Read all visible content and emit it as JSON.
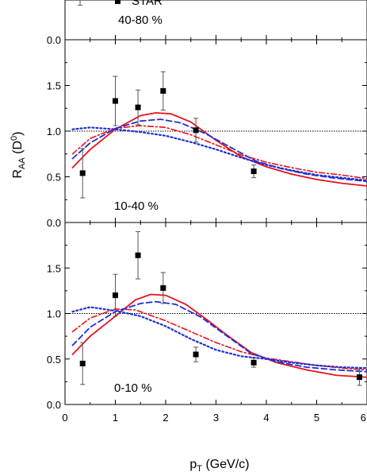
{
  "chart_data": {
    "type": "scatter",
    "xlabel": "p",
    "xlabel_sub": "T",
    "xlabel_unit": " (GeV/c)",
    "ylabel": "R",
    "ylabel_sub": "AA",
    "ylabel_species": " (D",
    "ylabel_sup": "0",
    "ylabel_close": ")",
    "xlim": [
      0,
      6
    ],
    "ylim": [
      0,
      2.0
    ],
    "x_ticks": [
      "0",
      "1",
      "2",
      "3",
      "4",
      "5",
      "6"
    ],
    "y_ticks": [
      "0.0",
      "0.5",
      "1.0",
      "1.5"
    ],
    "reference_line": 1.0,
    "legend_entry": "STAR",
    "panels": [
      {
        "label": "40-80 %",
        "partial": true,
        "ylim": [
          0,
          0.3
        ],
        "points": [],
        "curves": [],
        "errbar_stub": {
          "x": 0.3,
          "y_top": 0.3,
          "y_bot": 0.26
        }
      },
      {
        "label": "10-40 %",
        "points": [
          {
            "x": 0.35,
            "y": 0.54,
            "err": 0.27
          },
          {
            "x": 1.0,
            "y": 1.33,
            "err": 0.27
          },
          {
            "x": 1.45,
            "y": 1.26,
            "err": 0.19
          },
          {
            "x": 1.95,
            "y": 1.44,
            "err": 0.21
          },
          {
            "x": 2.6,
            "y": 1.01,
            "err": 0.13
          },
          {
            "x": 3.75,
            "y": 0.56,
            "err": 0.07
          }
        ],
        "curves": [
          {
            "style": "solid-red",
            "points": [
              [
                0.15,
                0.6
              ],
              [
                0.5,
                0.8
              ],
              [
                1.0,
                1.02
              ],
              [
                1.5,
                1.17
              ],
              [
                1.8,
                1.2
              ],
              [
                2.1,
                1.19
              ],
              [
                2.5,
                1.1
              ],
              [
                3.0,
                0.9
              ],
              [
                3.5,
                0.72
              ],
              [
                4.0,
                0.61
              ],
              [
                4.5,
                0.53
              ],
              [
                5.0,
                0.47
              ],
              [
                5.5,
                0.43
              ],
              [
                6.0,
                0.4
              ]
            ]
          },
          {
            "style": "dashdot-red",
            "points": [
              [
                0.15,
                0.75
              ],
              [
                0.5,
                0.92
              ],
              [
                1.0,
                1.03
              ],
              [
                1.5,
                1.06
              ],
              [
                2.0,
                1.04
              ],
              [
                2.5,
                0.96
              ],
              [
                3.0,
                0.85
              ],
              [
                3.5,
                0.74
              ],
              [
                4.0,
                0.66
              ],
              [
                4.5,
                0.6
              ],
              [
                5.0,
                0.55
              ],
              [
                5.5,
                0.52
              ],
              [
                6.0,
                0.48
              ]
            ]
          },
          {
            "style": "dashed-blue",
            "points": [
              [
                0.15,
                0.7
              ],
              [
                0.5,
                0.87
              ],
              [
                1.0,
                1.03
              ],
              [
                1.5,
                1.11
              ],
              [
                1.9,
                1.13
              ],
              [
                2.3,
                1.09
              ],
              [
                2.8,
                0.97
              ],
              [
                3.3,
                0.82
              ],
              [
                3.8,
                0.67
              ],
              [
                4.3,
                0.59
              ],
              [
                4.8,
                0.53
              ],
              [
                5.3,
                0.49
              ],
              [
                6.0,
                0.45
              ]
            ]
          },
          {
            "style": "dotted-blue",
            "points": [
              [
                0.15,
                1.02
              ],
              [
                0.5,
                1.04
              ],
              [
                1.0,
                1.02
              ],
              [
                1.5,
                0.99
              ],
              [
                2.0,
                0.95
              ],
              [
                2.5,
                0.88
              ],
              [
                3.0,
                0.8
              ],
              [
                3.5,
                0.71
              ],
              [
                4.0,
                0.63
              ],
              [
                4.5,
                0.57
              ],
              [
                5.0,
                0.52
              ],
              [
                5.5,
                0.49
              ],
              [
                6.0,
                0.46
              ]
            ]
          }
        ]
      },
      {
        "label": "0-10 %",
        "points": [
          {
            "x": 0.35,
            "y": 0.45,
            "err": 0.23
          },
          {
            "x": 1.0,
            "y": 1.2,
            "err": 0.23
          },
          {
            "x": 1.45,
            "y": 1.64,
            "err": 0.26
          },
          {
            "x": 1.95,
            "y": 1.28,
            "err": 0.17
          },
          {
            "x": 2.6,
            "y": 0.55,
            "err": 0.08
          },
          {
            "x": 3.75,
            "y": 0.46,
            "err": 0.05
          },
          {
            "x": 5.85,
            "y": 0.3,
            "err": 0.09
          }
        ],
        "curves": [
          {
            "style": "solid-red",
            "points": [
              [
                0.15,
                0.55
              ],
              [
                0.5,
                0.75
              ],
              [
                1.0,
                0.97
              ],
              [
                1.4,
                1.15
              ],
              [
                1.7,
                1.21
              ],
              [
                2.0,
                1.2
              ],
              [
                2.4,
                1.1
              ],
              [
                2.8,
                0.94
              ],
              [
                3.2,
                0.77
              ],
              [
                3.7,
                0.57
              ],
              [
                4.2,
                0.46
              ],
              [
                4.8,
                0.38
              ],
              [
                5.4,
                0.32
              ],
              [
                6.0,
                0.3
              ]
            ]
          },
          {
            "style": "dashdot-red",
            "points": [
              [
                0.15,
                0.8
              ],
              [
                0.5,
                0.95
              ],
              [
                1.0,
                1.05
              ],
              [
                1.4,
                1.04
              ],
              [
                2.0,
                0.92
              ],
              [
                2.5,
                0.8
              ],
              [
                3.0,
                0.68
              ],
              [
                3.5,
                0.58
              ],
              [
                4.0,
                0.51
              ],
              [
                4.5,
                0.47
              ],
              [
                5.0,
                0.43
              ],
              [
                5.5,
                0.4
              ],
              [
                6.0,
                0.38
              ]
            ]
          },
          {
            "style": "dashed-blue",
            "points": [
              [
                0.15,
                0.65
              ],
              [
                0.5,
                0.85
              ],
              [
                1.0,
                1.02
              ],
              [
                1.5,
                1.11
              ],
              [
                1.8,
                1.13
              ],
              [
                2.2,
                1.1
              ],
              [
                2.7,
                0.96
              ],
              [
                3.2,
                0.76
              ],
              [
                3.7,
                0.56
              ],
              [
                4.2,
                0.47
              ],
              [
                4.8,
                0.41
              ],
              [
                5.4,
                0.38
              ],
              [
                6.0,
                0.36
              ]
            ]
          },
          {
            "style": "dotted-blue",
            "points": [
              [
                0.15,
                1.02
              ],
              [
                0.5,
                1.07
              ],
              [
                1.0,
                1.03
              ],
              [
                1.5,
                0.97
              ],
              [
                2.0,
                0.86
              ],
              [
                2.5,
                0.72
              ],
              [
                3.0,
                0.6
              ],
              [
                3.5,
                0.53
              ],
              [
                4.0,
                0.5
              ],
              [
                4.5,
                0.46
              ],
              [
                5.0,
                0.43
              ],
              [
                5.5,
                0.41
              ],
              [
                6.0,
                0.4
              ]
            ]
          }
        ]
      }
    ],
    "styles": {
      "solid-red": {
        "color": "#e8121a",
        "dash": "",
        "width": 1.8
      },
      "dashdot-red": {
        "color": "#e8121a",
        "dash": "7 3 2 3",
        "width": 1.6
      },
      "dashed-blue": {
        "color": "#1c2fd6",
        "dash": "7 4",
        "width": 1.8
      },
      "dotted-blue": {
        "color": "#1c2fd6",
        "dash": "2 3",
        "width": 2.2
      }
    }
  }
}
